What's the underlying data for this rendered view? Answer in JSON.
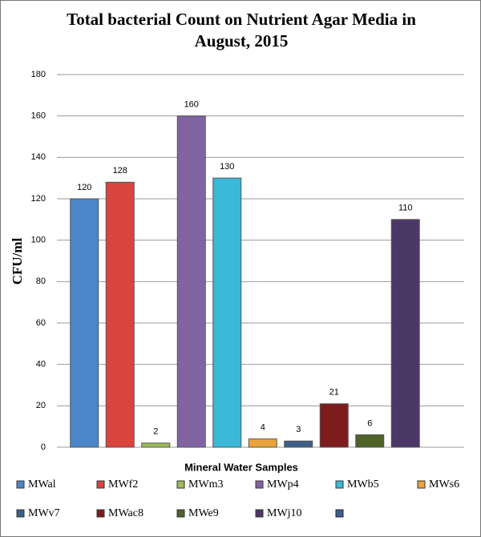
{
  "chart_data": {
    "type": "bar",
    "title": "Total bacterial Count on Nutrient Agar Media in August, 2015",
    "y_label": "CFU/ml",
    "x_label": "Mineral Water Samples",
    "series": [
      {
        "name": "MWal",
        "color": "#4a86c8",
        "values": [
          120
        ]
      },
      {
        "name": "MWf2",
        "color": "#d9443f",
        "values": [
          128
        ]
      },
      {
        "name": "MWm3",
        "color": "#9bbb59",
        "values": [
          2
        ]
      },
      {
        "name": "MWp4",
        "color": "#8064a2",
        "values": [
          160
        ]
      },
      {
        "name": "MWb5",
        "color": "#3ab8d8",
        "values": [
          130
        ]
      },
      {
        "name": "MWs6",
        "color": "#e8a33a",
        "values": [
          4
        ]
      },
      {
        "name": "MWv7",
        "color": "#3d5f8a",
        "values": [
          3
        ]
      },
      {
        "name": "MWac8",
        "color": "#7d1c1c",
        "values": [
          21
        ]
      },
      {
        "name": "MWe9",
        "color": "#4f6228",
        "values": [
          6
        ]
      },
      {
        "name": "MWj10",
        "color": "#4c3866",
        "values": [
          110
        ]
      }
    ],
    "ylim": [
      0,
      180
    ],
    "yticks": [
      0,
      20,
      40,
      60,
      80,
      100,
      120,
      140,
      160,
      180
    ],
    "grid": true
  }
}
